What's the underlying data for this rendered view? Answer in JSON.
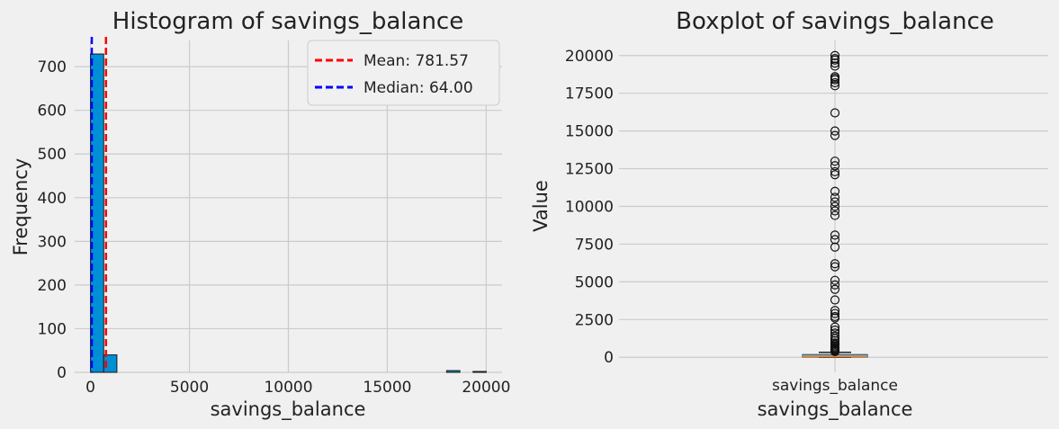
{
  "chart_data": [
    {
      "type": "bar",
      "title": "Histogram of savings_balance",
      "xlabel": "savings_balance",
      "ylabel": "Frequency",
      "xlim": [
        -800,
        20800
      ],
      "ylim": [
        0,
        760
      ],
      "xticks": [
        0,
        5000,
        10000,
        15000,
        20000
      ],
      "yticks": [
        0,
        100,
        200,
        300,
        400,
        500,
        600,
        700
      ],
      "bin_width": 666.7,
      "bins": [
        {
          "x0": 0,
          "x1": 666.7,
          "count": 729
        },
        {
          "x0": 666.7,
          "x1": 1333.3,
          "count": 40
        },
        {
          "x0": 17999,
          "x1": 18666,
          "count": 4
        },
        {
          "x0": 19333,
          "x1": 20000,
          "count": 2
        }
      ],
      "vlines": [
        {
          "label": "Mean: 781.57",
          "value": 781.57,
          "color": "#ff0000"
        },
        {
          "label": "Median: 64.00",
          "value": 64.0,
          "color": "#0000ff"
        }
      ],
      "bar_color": "#008fd5",
      "grid": true,
      "legend": "top-right"
    },
    {
      "type": "box",
      "title": "Boxplot of savings_balance",
      "xlabel": "savings_balance",
      "ylabel": "Value",
      "category": "savings_balance",
      "ylim": [
        -1000,
        21000
      ],
      "yticks": [
        0,
        2500,
        5000,
        7500,
        10000,
        12500,
        15000,
        17500,
        20000
      ],
      "box": {
        "q1": 18,
        "median": 64,
        "q3": 170,
        "whisker_low": 0,
        "whisker_high": 330
      },
      "outliers": [
        20000,
        19800,
        19700,
        19500,
        19300,
        18600,
        18500,
        18400,
        18200,
        18000,
        16200,
        15000,
        14700,
        13000,
        12700,
        12300,
        12100,
        11000,
        10600,
        10300,
        10000,
        9700,
        9400,
        8100,
        7800,
        7300,
        6200,
        6000,
        5100,
        4800,
        4500,
        3800,
        3100,
        2900,
        2700,
        2600,
        2000,
        1800,
        1600,
        1400,
        1250,
        1100,
        950,
        850,
        760,
        680,
        610,
        550,
        490,
        430,
        380
      ],
      "box_color": "#1f77b4",
      "median_color": "#ff7f0e",
      "grid": true
    }
  ]
}
